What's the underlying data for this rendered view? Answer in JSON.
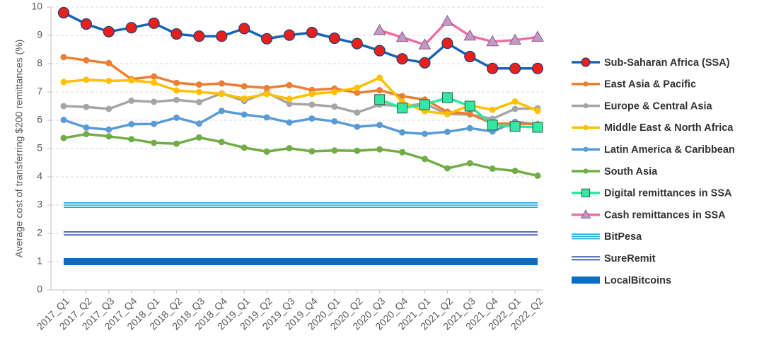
{
  "chart_data": {
    "type": "line",
    "y_label": "Average cost of transferring $200 remittances (%)",
    "categories": [
      "2017_Q1",
      "2017_Q2",
      "2017_Q3",
      "2017_Q4",
      "2018_Q1",
      "2018_Q2",
      "2018_Q3",
      "2018_Q4",
      "2019_Q1",
      "2019_Q2",
      "2019_Q3",
      "2019_Q4",
      "2020_Q1",
      "2020_Q2",
      "2020_Q3",
      "2020_Q4",
      "2021_Q1",
      "2021_Q2",
      "2021_Q3",
      "2021_Q4",
      "2022_Q1",
      "2022_Q2"
    ],
    "ylim": [
      0,
      10
    ],
    "yticks": [
      0,
      1,
      2,
      3,
      4,
      5,
      6,
      7,
      8,
      9,
      10
    ],
    "grid": true,
    "legend": "right",
    "series": [
      {
        "name": "Sub-Saharan Africa (SSA)",
        "color": "#1764b5",
        "marker": "circle",
        "marker_color": "#e8201c",
        "line_style": "solid",
        "values": [
          9.8,
          9.4,
          9.13,
          9.27,
          9.43,
          9.05,
          8.97,
          8.97,
          9.24,
          8.88,
          9.01,
          9.1,
          8.9,
          8.71,
          8.46,
          8.17,
          8.03,
          8.72,
          8.25,
          7.83,
          7.83,
          7.83
        ]
      },
      {
        "name": "East Asia & Pacific",
        "color": "#ed7d31",
        "marker": "dot",
        "marker_color": "#ed7d31",
        "line_style": "solid",
        "values": [
          8.23,
          8.12,
          8.02,
          7.45,
          7.55,
          7.32,
          7.26,
          7.3,
          7.2,
          7.14,
          7.24,
          7.07,
          7.12,
          6.97,
          7.06,
          6.85,
          6.73,
          6.3,
          6.23,
          5.88,
          5.88,
          5.86
        ]
      },
      {
        "name": "Europe & Central Asia",
        "color": "#a5a5a5",
        "marker": "dot",
        "marker_color": "#a5a5a5",
        "line_style": "solid",
        "values": [
          6.5,
          6.47,
          6.4,
          6.69,
          6.65,
          6.72,
          6.64,
          6.95,
          6.68,
          6.98,
          6.58,
          6.55,
          6.48,
          6.27,
          6.55,
          6.5,
          6.58,
          6.22,
          6.2,
          6.05,
          6.4,
          6.42
        ]
      },
      {
        "name": "Middle East & North Africa",
        "color": "#ffc000",
        "marker": "dot",
        "marker_color": "#ffc000",
        "line_style": "solid",
        "values": [
          7.35,
          7.43,
          7.39,
          7.41,
          7.33,
          7.05,
          7.0,
          6.93,
          6.77,
          6.93,
          6.75,
          6.93,
          7.0,
          7.15,
          7.5,
          6.65,
          6.32,
          6.22,
          6.52,
          6.37,
          6.66,
          6.33
        ]
      },
      {
        "name": "Latin America & Caribbean",
        "color": "#5b9bd5",
        "marker": "dot",
        "marker_color": "#5b9bd5",
        "line_style": "solid",
        "values": [
          6.01,
          5.74,
          5.67,
          5.86,
          5.87,
          6.09,
          5.88,
          6.33,
          6.2,
          6.1,
          5.92,
          6.06,
          5.96,
          5.77,
          5.83,
          5.57,
          5.52,
          5.59,
          5.72,
          5.6,
          5.94,
          5.85
        ]
      },
      {
        "name": "South Asia",
        "color": "#70ad47",
        "marker": "dot",
        "marker_color": "#70ad47",
        "line_style": "solid",
        "values": [
          5.37,
          5.51,
          5.43,
          5.33,
          5.2,
          5.17,
          5.39,
          5.23,
          5.03,
          4.89,
          5.01,
          4.9,
          4.93,
          4.92,
          4.97,
          4.87,
          4.63,
          4.3,
          4.48,
          4.29,
          4.21,
          4.04
        ]
      },
      {
        "name": "Digital remittances in SSA",
        "color": "#2de8a0",
        "marker": "square",
        "marker_color": "#33e8a5",
        "line_style": "solid",
        "values": [
          null,
          null,
          null,
          null,
          null,
          null,
          null,
          null,
          null,
          null,
          null,
          null,
          null,
          null,
          6.73,
          6.43,
          6.55,
          6.8,
          6.5,
          5.83,
          5.78,
          5.75
        ]
      },
      {
        "name": "Cash remittances in SSA",
        "color": "#f06ea6",
        "marker": "triangle",
        "marker_color": "#c39ac6",
        "line_style": "solid",
        "values": [
          null,
          null,
          null,
          null,
          null,
          null,
          null,
          null,
          null,
          null,
          null,
          null,
          null,
          null,
          9.18,
          8.93,
          8.67,
          9.5,
          8.98,
          8.78,
          8.83,
          8.94
        ]
      },
      {
        "name": "BitPesa",
        "color": "#21a9e1",
        "marker": "none",
        "line_style": "triple",
        "values": [
          3,
          3,
          3,
          3,
          3,
          3,
          3,
          3,
          3,
          3,
          3,
          3,
          3,
          3,
          3,
          3,
          3,
          3,
          3,
          3,
          3,
          3
        ]
      },
      {
        "name": "SureRemit",
        "color": "#3f5ba9",
        "marker": "none",
        "line_style": "double",
        "values": [
          2,
          2,
          2,
          2,
          2,
          2,
          2,
          2,
          2,
          2,
          2,
          2,
          2,
          2,
          2,
          2,
          2,
          2,
          2,
          2,
          2,
          2
        ]
      },
      {
        "name": "LocalBitcoins",
        "color": "#0a6cc2",
        "marker": "none",
        "line_style": "thick",
        "values": [
          1,
          1,
          1,
          1,
          1,
          1,
          1,
          1,
          1,
          1,
          1,
          1,
          1,
          1,
          1,
          1,
          1,
          1,
          1,
          1,
          1,
          1
        ]
      }
    ]
  }
}
